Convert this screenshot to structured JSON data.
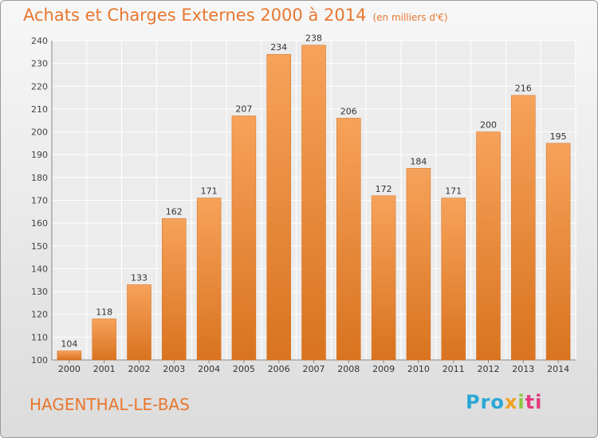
{
  "header": {
    "title": "Achats et Charges Externes 2000 à 2014",
    "subtitle": "(en milliers d'€)"
  },
  "footer": {
    "place": "HAGENTHAL-LE-BAS",
    "brand": [
      "Pro",
      "x",
      "i",
      "ti"
    ]
  },
  "colors": {
    "bar_top": "#f6a25a",
    "bar_bottom": "#d9731f",
    "accent": "#e8772f"
  },
  "chart_data": {
    "type": "bar",
    "categories": [
      "2000",
      "2001",
      "2002",
      "2003",
      "2004",
      "2005",
      "2006",
      "2007",
      "2008",
      "2009",
      "2010",
      "2011",
      "2012",
      "2013",
      "2014"
    ],
    "values": [
      104,
      118,
      133,
      162,
      171,
      207,
      234,
      238,
      206,
      172,
      184,
      171,
      200,
      216,
      195
    ],
    "ylim": [
      100,
      240
    ],
    "yticks": [
      100,
      110,
      120,
      130,
      140,
      150,
      160,
      170,
      180,
      190,
      200,
      210,
      220,
      230,
      240
    ],
    "grid": true
  }
}
